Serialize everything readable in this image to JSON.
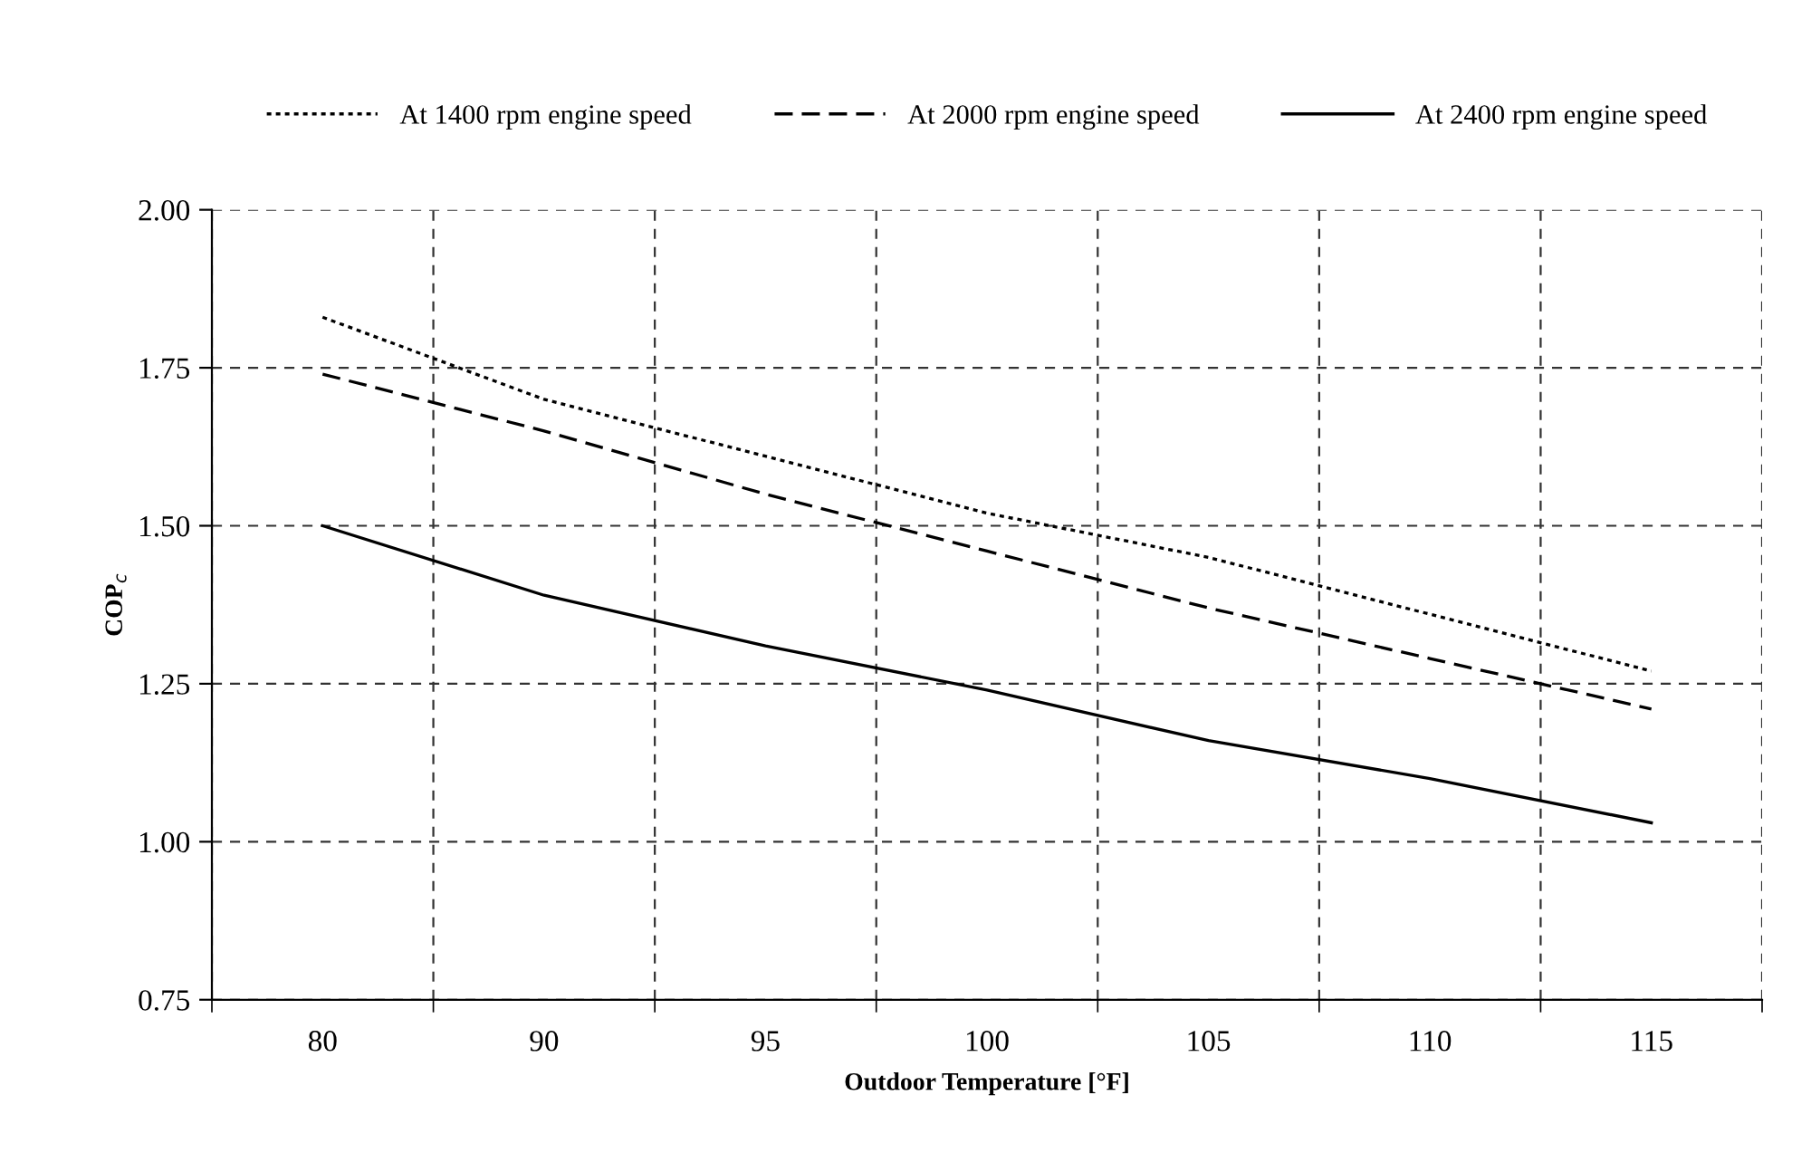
{
  "chart_data": {
    "type": "line",
    "xlabel": "Outdoor Temperature [°F]",
    "ylabel": "COP$_{c}$",
    "categories": [
      "80",
      "90",
      "95",
      "100",
      "105",
      "110",
      "115"
    ],
    "series": [
      {
        "name": "At 1400 rpm engine speed",
        "color": "#000000",
        "line_style": "dotted",
        "values": [
          1.83,
          1.7,
          1.61,
          1.52,
          1.45,
          1.36,
          1.27
        ]
      },
      {
        "name": "At 2000 rpm engine speed",
        "color": "#000000",
        "line_style": "dashed",
        "values": [
          1.74,
          1.65,
          1.55,
          1.46,
          1.37,
          1.29,
          1.21
        ]
      },
      {
        "name": "At 2400 rpm engine speed",
        "color": "#000000",
        "line_style": "solid",
        "values": [
          1.5,
          1.39,
          1.31,
          1.24,
          1.16,
          1.1,
          1.03
        ]
      }
    ],
    "ylim": [
      0.75,
      2.0
    ],
    "yticks": [
      {
        "value": 0.75,
        "label": "0.75"
      },
      {
        "value": 1.0,
        "label": "1.00"
      },
      {
        "value": 1.25,
        "label": "1.25"
      },
      {
        "value": 1.5,
        "label": "1.50"
      },
      {
        "value": 1.75,
        "label": "1.75"
      },
      {
        "value": 2.0,
        "label": "2.00"
      }
    ],
    "grid": true,
    "legend": "top",
    "marker": "none"
  }
}
